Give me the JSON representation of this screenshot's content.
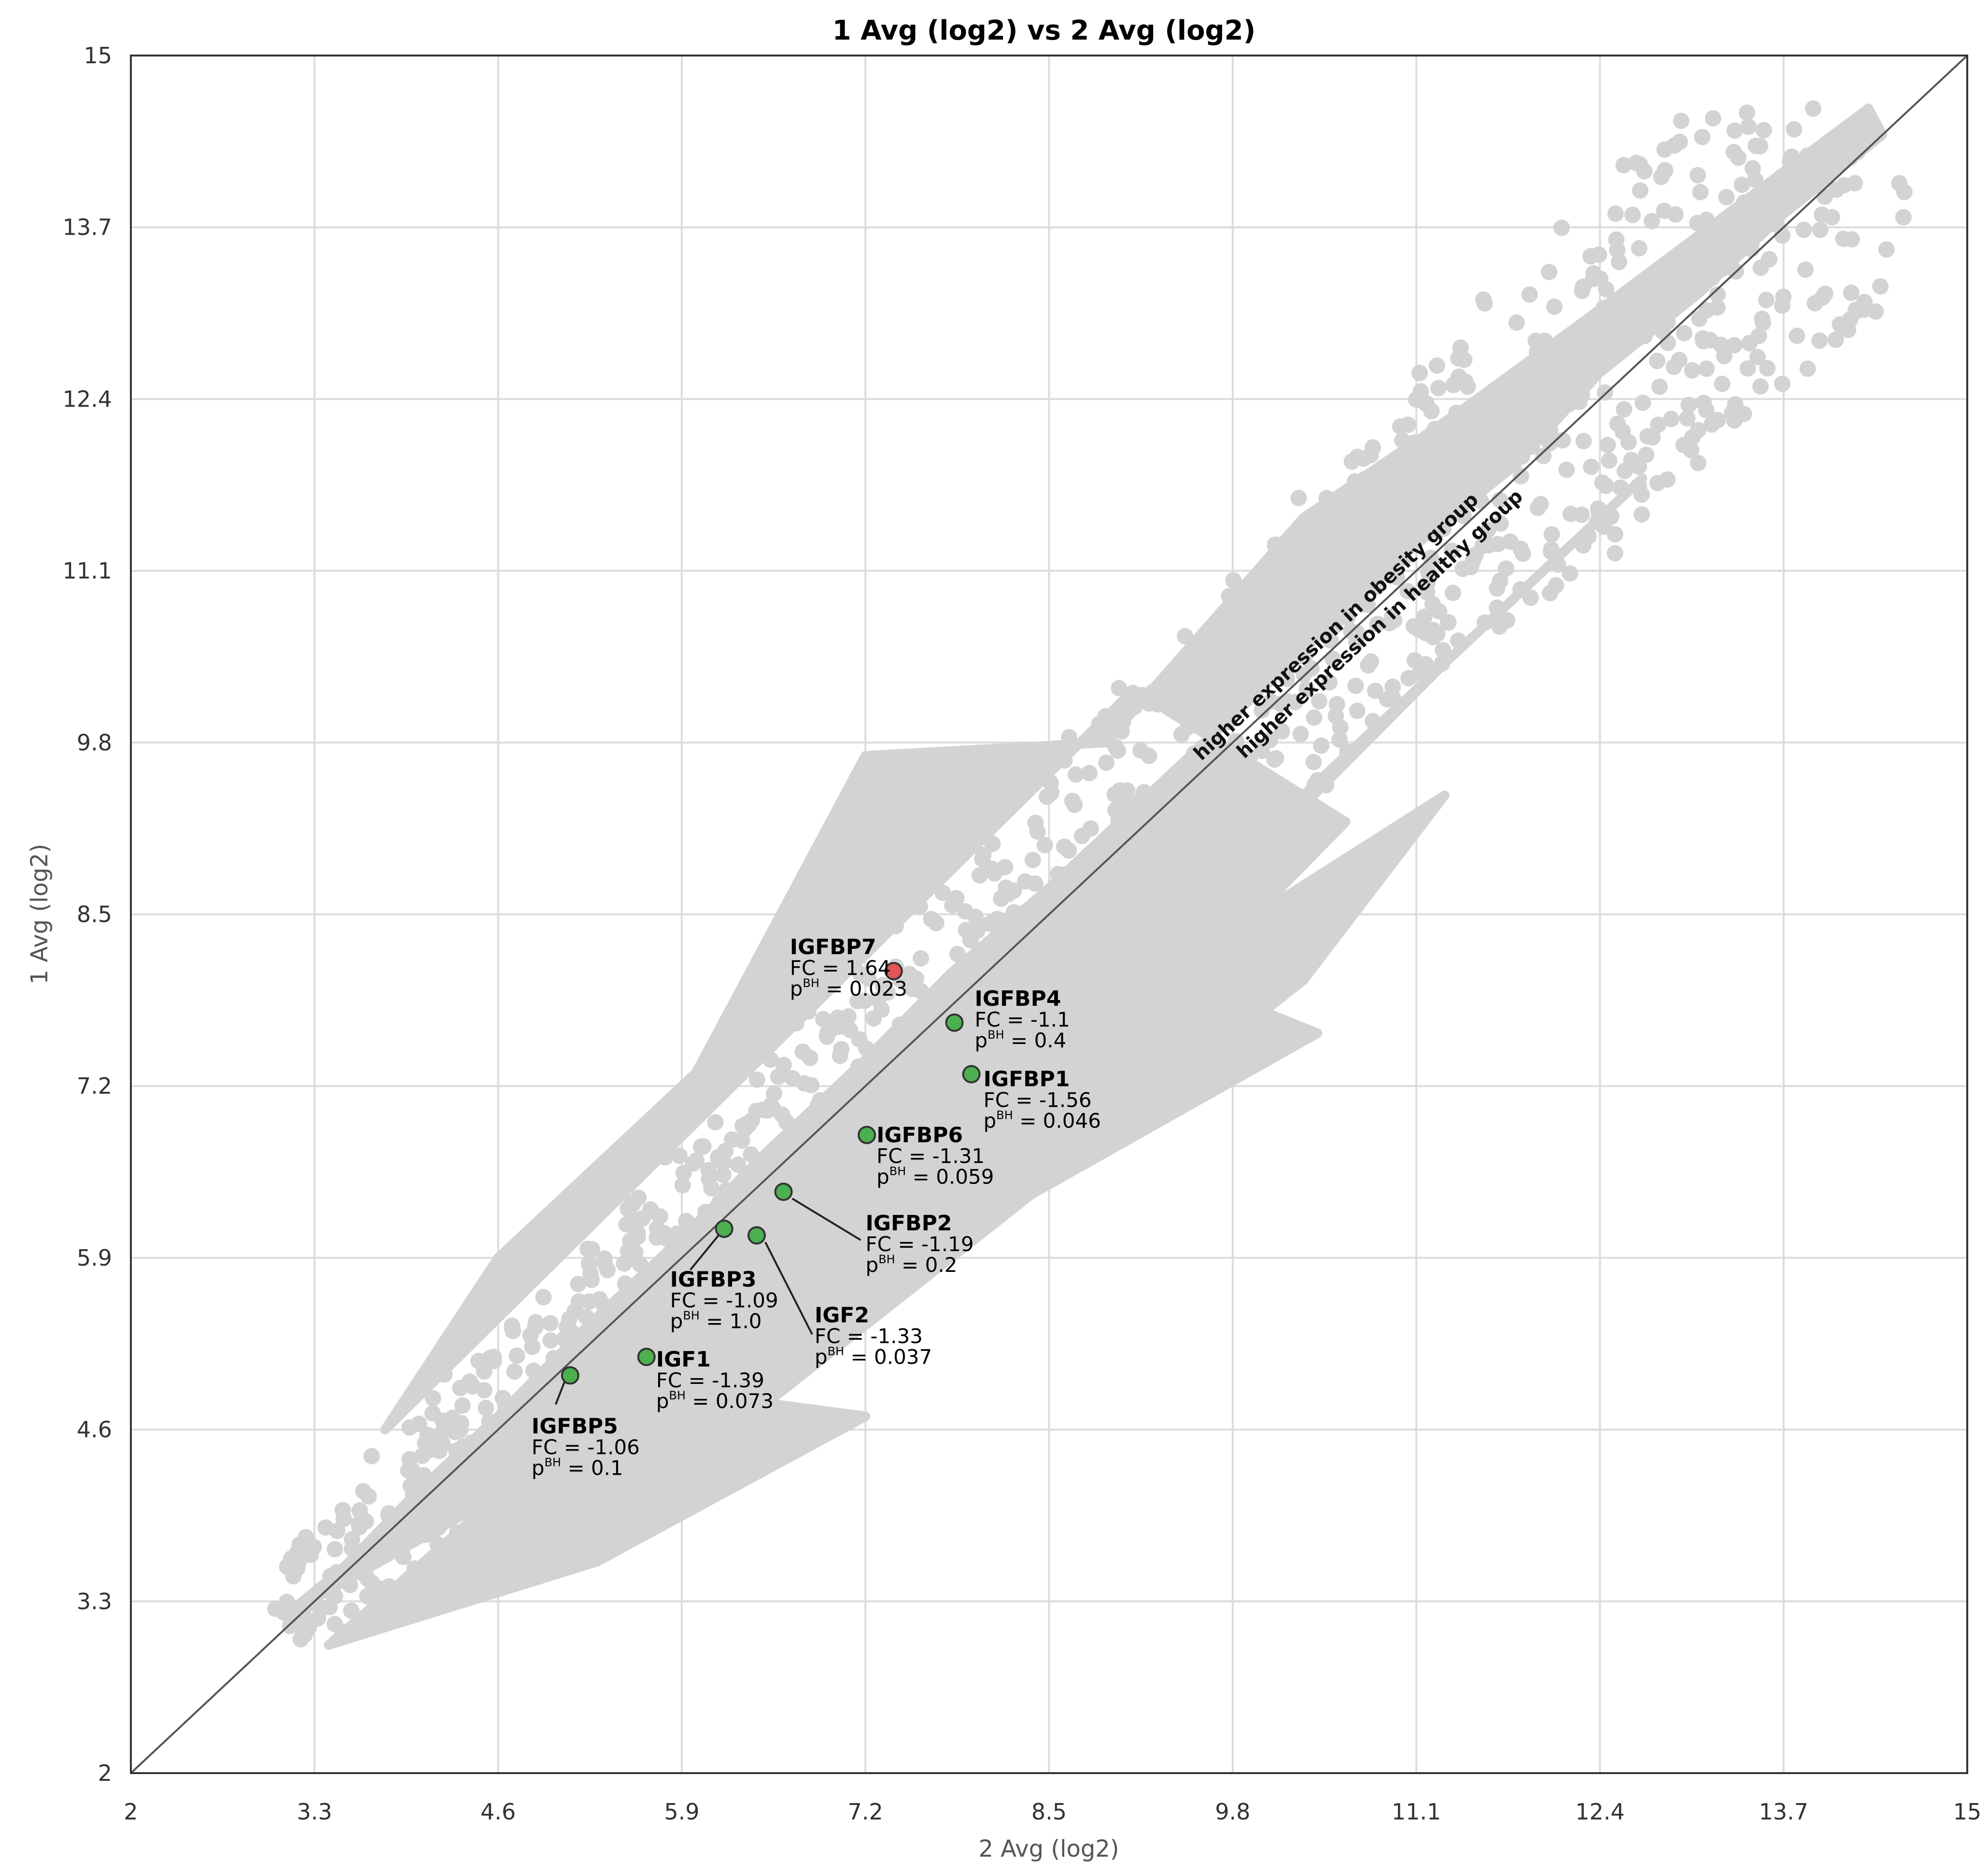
{
  "chart_data": {
    "type": "scatter",
    "title": "1 Avg (log2) vs 2 Avg (log2)",
    "xlabel": "2 Avg (log2)",
    "ylabel": "1 Avg (log2)",
    "xlim": [
      2,
      15
    ],
    "ylim": [
      2,
      15
    ],
    "x_ticks": [
      "2",
      "3.3",
      "4.6",
      "5.9",
      "7.2",
      "8.5",
      "9.8",
      "11.1",
      "12.4",
      "13.7",
      "15"
    ],
    "y_ticks": [
      "2",
      "3.3",
      "4.6",
      "5.9",
      "7.2",
      "8.5",
      "9.8",
      "11.1",
      "12.4",
      "13.7",
      "15"
    ],
    "grid": true,
    "diagonal_line": "y = x",
    "diagonal_labels": {
      "above": "higher expression in obesity group",
      "below": "higher expression in healthy group"
    },
    "background_color": "#d3d3d3",
    "series": [
      {
        "color": "#d3d3d3",
        "description_points": [
          [
            3.1,
            3.2
          ],
          [
            3.5,
            3.55
          ],
          [
            4.0,
            4.1
          ],
          [
            4.6,
            4.7
          ],
          [
            5.2,
            5.35
          ],
          [
            5.9,
            6.05
          ],
          [
            6.5,
            6.7
          ],
          [
            7.2,
            7.4
          ],
          [
            7.8,
            8.05
          ],
          [
            8.5,
            8.7
          ],
          [
            9.2,
            9.4
          ],
          [
            9.8,
            10.0
          ],
          [
            10.5,
            10.7
          ],
          [
            11.1,
            11.3
          ],
          [
            11.8,
            11.9
          ],
          [
            12.4,
            12.6
          ],
          [
            13.1,
            13.2
          ],
          [
            13.7,
            13.8
          ],
          [
            14.4,
            14.4
          ],
          [
            14.3,
            14.6
          ],
          [
            12.3,
            13.0
          ],
          [
            11.4,
            12.3
          ],
          [
            10.3,
            11.5
          ],
          [
            8.9,
            9.8
          ],
          [
            7.2,
            9.7
          ],
          [
            6.0,
            7.3
          ],
          [
            4.6,
            5.9
          ],
          [
            3.8,
            4.6
          ],
          [
            9.1,
            10.2
          ],
          [
            10.6,
            9.2
          ],
          [
            9.5,
            8.0
          ],
          [
            8.3,
            7.3
          ],
          [
            7.2,
            6.3
          ],
          [
            6.4,
            5.2
          ],
          [
            5.0,
            4.0
          ],
          [
            4.3,
            3.4
          ],
          [
            12.7,
            11.8
          ],
          [
            11.3,
            10.4
          ],
          [
            10.0,
            9.0
          ],
          [
            8.8,
            7.7
          ],
          [
            11.3,
            9.4
          ],
          [
            10.3,
            8.0
          ],
          [
            6.5,
            4.8
          ],
          [
            7.2,
            4.7
          ],
          [
            5.3,
            3.6
          ],
          [
            3.4,
            2.97
          ],
          [
            9.0,
            8.2
          ],
          [
            10.4,
            7.6
          ]
        ]
      },
      {
        "name": "IGFBP7",
        "color": "#e05555",
        "x": 7.4,
        "y": 8.07,
        "label": "IGFBP7",
        "fc_label": "FC = 1.64",
        "p_prefix": "p",
        "p_sup": "BH",
        "p_value": " = 0.023"
      },
      {
        "name": "IGFBP4",
        "color": "#4caf50",
        "x": 7.83,
        "y": 7.68,
        "label": "IGFBP4",
        "fc_label": "FC = -1.1",
        "p_prefix": "p",
        "p_sup": "BH",
        "p_value": " = 0.4"
      },
      {
        "name": "IGFBP1",
        "color": "#4caf50",
        "x": 7.95,
        "y": 7.29,
        "label": "IGFBP1",
        "fc_label": "FC = -1.56",
        "p_prefix": "p",
        "p_sup": "BH",
        "p_value": " = 0.046"
      },
      {
        "name": "IGFBP6",
        "color": "#4caf50",
        "x": 7.21,
        "y": 6.83,
        "label": "IGFBP6",
        "fc_label": "FC = -1.31",
        "p_prefix": "p",
        "p_sup": "BH",
        "p_value": " = 0.059"
      },
      {
        "name": "IGFBP2",
        "color": "#4caf50",
        "x": 6.62,
        "y": 6.4,
        "label": "IGFBP2",
        "fc_label": "FC = -1.19",
        "p_prefix": "p",
        "p_sup": "BH",
        "p_value": " = 0.2"
      },
      {
        "name": "IGFBP3",
        "color": "#4caf50",
        "x": 6.2,
        "y": 6.12,
        "label": "IGFBP3",
        "fc_label": "FC = -1.09",
        "p_prefix": "p",
        "p_sup": "BH",
        "p_value": " = 1.0"
      },
      {
        "name": "IGF2",
        "color": "#4caf50",
        "x": 6.43,
        "y": 6.07,
        "label": "IGF2",
        "fc_label": "FC = -1.33",
        "p_prefix": "p",
        "p_sup": "BH",
        "p_value": " = 0.037"
      },
      {
        "name": "IGF1",
        "color": "#4caf50",
        "x": 5.65,
        "y": 5.15,
        "label": "IGF1",
        "fc_label": "FC = -1.39",
        "p_prefix": "p",
        "p_sup": "BH",
        "p_value": " = 0.073"
      },
      {
        "name": "IGFBP5",
        "color": "#4caf50",
        "x": 5.11,
        "y": 5.01,
        "label": "IGFBP5",
        "fc_label": "FC = -1.06",
        "p_prefix": "p",
        "p_sup": "BH",
        "p_value": " = 0.1"
      }
    ]
  }
}
